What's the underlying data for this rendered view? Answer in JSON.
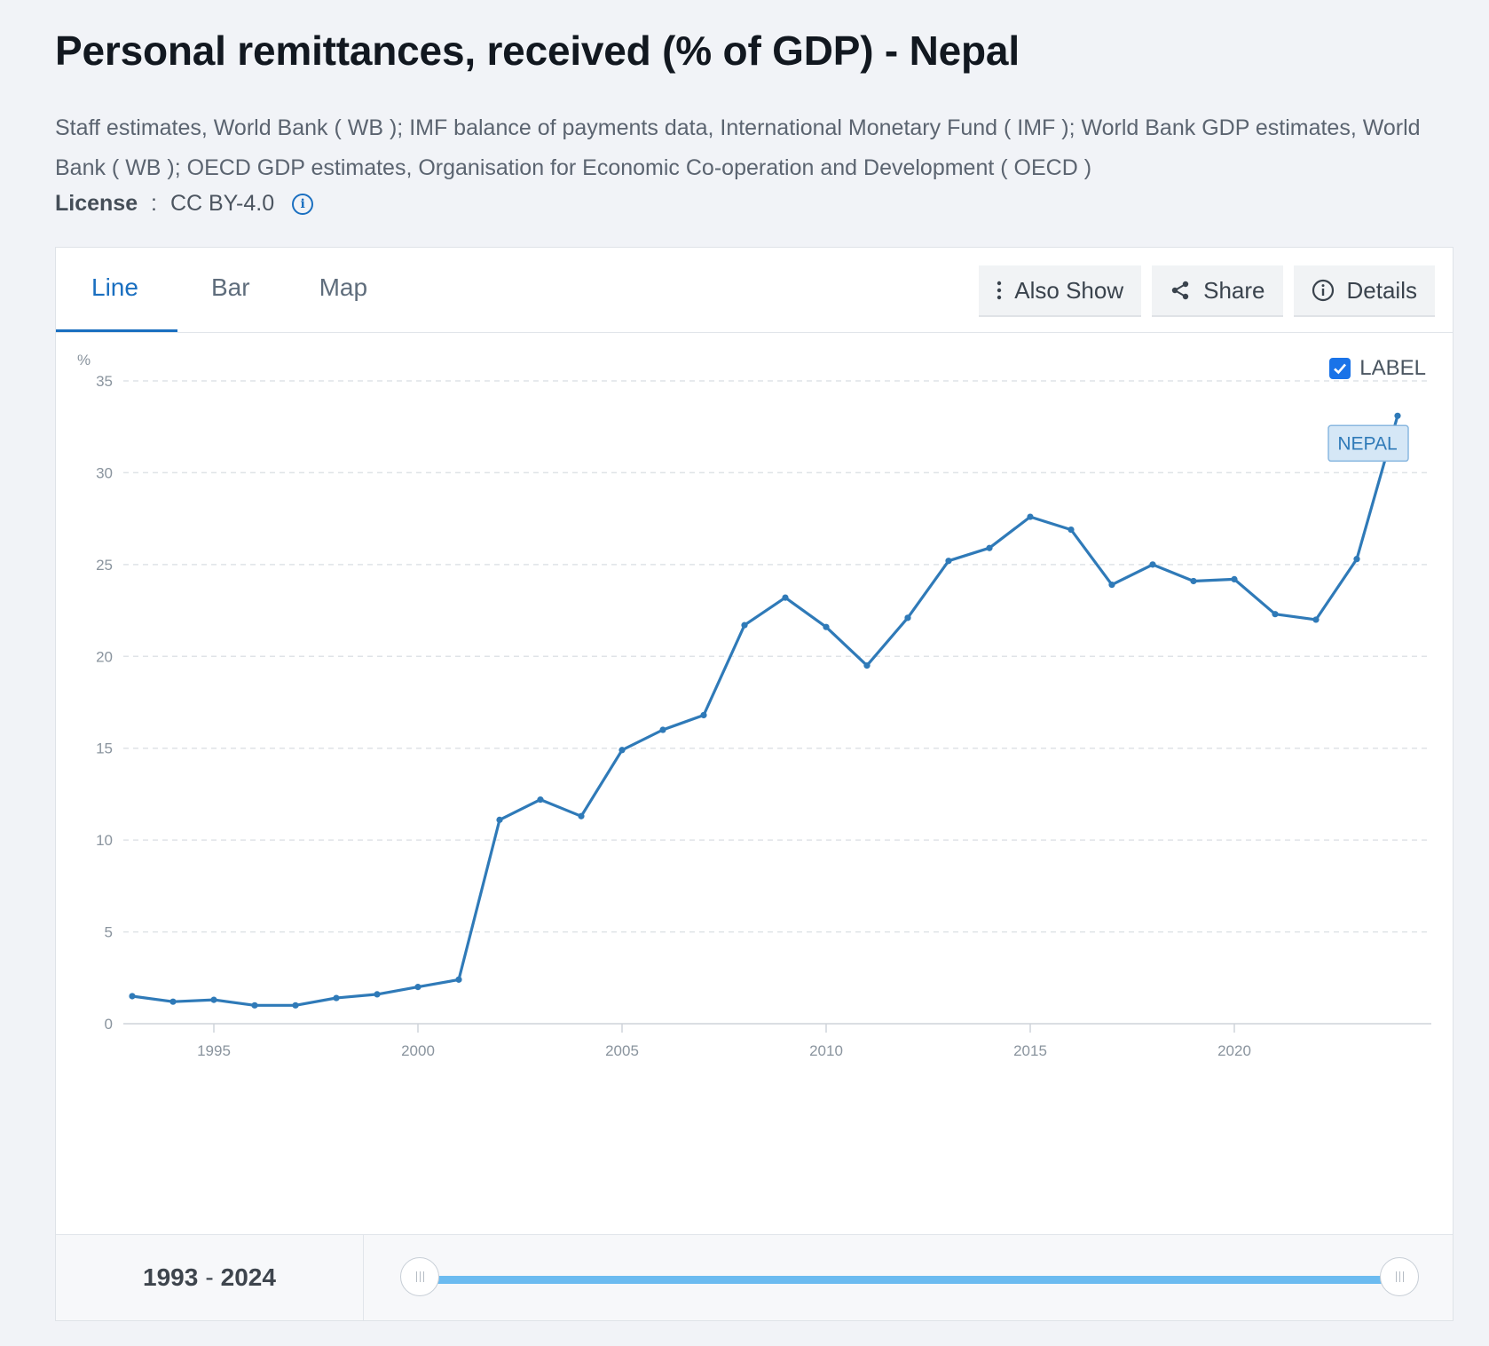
{
  "header": {
    "title": "Personal remittances, received (% of GDP) - Nepal",
    "sources": "Staff estimates, World Bank ( WB ); IMF balance of payments data, International Monetary Fund ( IMF ); World Bank GDP estimates, World Bank ( WB ); OECD GDP estimates, Organisation for Economic Co-operation and Development ( OECD )",
    "license_label": "License",
    "license_sep": " : ",
    "license_value": "CC BY-4.0"
  },
  "tabs": [
    {
      "label": "Line",
      "active": true
    },
    {
      "label": "Bar",
      "active": false
    },
    {
      "label": "Map",
      "active": false
    }
  ],
  "toolbar": {
    "also_show": "Also Show",
    "share": "Share",
    "details": "Details"
  },
  "label_toggle": {
    "text": "LABEL",
    "checked": true
  },
  "range": {
    "start": "1993",
    "sep": "-",
    "end": "2024"
  },
  "colors": {
    "line": "#2f7ab8",
    "accent": "#1a6fc0",
    "slider": "#6bbbf0"
  },
  "chart_data": {
    "type": "line",
    "title": "Personal remittances, received (% of GDP) - Nepal",
    "ylabel": "%",
    "xlabel": "",
    "ylim": [
      0,
      35
    ],
    "xlim": [
      1993,
      2024
    ],
    "yticks": [
      0,
      5,
      10,
      15,
      20,
      25,
      30,
      35
    ],
    "xticks": [
      1995,
      2000,
      2005,
      2010,
      2015,
      2020
    ],
    "grid": true,
    "series": [
      {
        "name": "NEPAL",
        "x": [
          1993,
          1994,
          1995,
          1996,
          1997,
          1998,
          1999,
          2000,
          2001,
          2002,
          2003,
          2004,
          2005,
          2006,
          2007,
          2008,
          2009,
          2010,
          2011,
          2012,
          2013,
          2014,
          2015,
          2016,
          2017,
          2018,
          2019,
          2020,
          2021,
          2022,
          2023,
          2024
        ],
        "values": [
          1.5,
          1.2,
          1.3,
          1.0,
          1.0,
          1.4,
          1.6,
          2.0,
          2.4,
          11.1,
          12.2,
          11.3,
          14.9,
          16.0,
          16.8,
          21.7,
          23.2,
          21.6,
          19.5,
          22.1,
          25.2,
          25.9,
          27.6,
          26.9,
          23.9,
          25.0,
          24.1,
          24.2,
          22.3,
          22.0,
          25.3,
          33.1
        ]
      }
    ]
  }
}
